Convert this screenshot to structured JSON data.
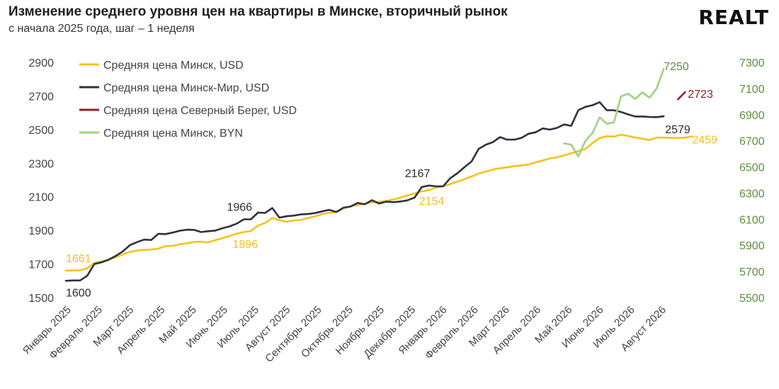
{
  "header": {
    "title": "Изменение среднего уровня цен на квартиры в Минске, вторичный рынок",
    "subtitle": "с начала 2025 года, шаг – 1 неделя",
    "logo": "REALT"
  },
  "colors": {
    "minsk_usd": "#f5c21b",
    "minsk_mir_usd": "#2b3340",
    "severny_bereg_usd": "#8b2323",
    "minsk_byn": "#9fd27f",
    "right_axis": "#5f8f3a"
  },
  "chart_data": {
    "type": "line",
    "title": "Изменение среднего уровня цен на квартиры в Минске, вторичный рынок",
    "subtitle": "с начала 2025 года, шаг – 1 неделя",
    "x_unit": "week",
    "x_start_label": "Январь 2025",
    "x_tick_labels": [
      "Январь 2025",
      "Февраль 2025",
      "Март 2025",
      "Апрель 2025",
      "Май 2025",
      "Июнь 2025",
      "Июль 2025",
      "Август 2025",
      "Сентябрь 2025",
      "Октябрь 2025",
      "Ноябрь 2025",
      "Декабрь 2025",
      "Январь 2026",
      "Февраль 2026",
      "Март 2026",
      "Апрель 2026",
      "Май 2026",
      "Июнь 2026",
      "Июль 2026",
      "Август 2026"
    ],
    "y_left": {
      "ylim": [
        1500,
        2900
      ],
      "ticks": [
        1500,
        1700,
        1900,
        2100,
        2300,
        2500,
        2700,
        2900
      ]
    },
    "y_right": {
      "ylim": [
        5500,
        7300
      ],
      "ticks": [
        5500,
        5700,
        5900,
        6100,
        6300,
        6500,
        6700,
        6900,
        7100,
        7300
      ]
    },
    "grid": false,
    "legend_position": "top-left",
    "series": [
      {
        "name": "Средняя цена Минск, USD",
        "axis": "left",
        "start_week": 0,
        "values": [
          1661,
          1661,
          1662,
          1675,
          1706,
          1715,
          1725,
          1740,
          1757,
          1772,
          1780,
          1784,
          1786,
          1792,
          1806,
          1808,
          1818,
          1823,
          1831,
          1833,
          1828,
          1842,
          1854,
          1866,
          1880,
          1890,
          1896,
          1929,
          1944,
          1974,
          1960,
          1951,
          1959,
          1962,
          1973,
          1983,
          1997,
          2004,
          2008,
          2031,
          2045,
          2050,
          2060,
          2066,
          2070,
          2075,
          2083,
          2095,
          2108,
          2120,
          2132,
          2140,
          2154,
          2163,
          2175,
          2190,
          2205,
          2221,
          2237,
          2250,
          2262,
          2270,
          2275,
          2282,
          2287,
          2292,
          2305,
          2316,
          2328,
          2335,
          2346,
          2359,
          2372,
          2384,
          2420,
          2450,
          2460,
          2458,
          2470,
          2462,
          2452,
          2446,
          2438,
          2452,
          2452,
          2450,
          2450,
          2452,
          2459
        ]
      },
      {
        "name": "Средняя цена Минск-Мир, USD",
        "axis": "left",
        "start_week": 0,
        "values": [
          1600,
          1602,
          1602,
          1630,
          1700,
          1710,
          1725,
          1748,
          1775,
          1812,
          1830,
          1845,
          1843,
          1880,
          1878,
          1887,
          1898,
          1904,
          1903,
          1890,
          1895,
          1899,
          1913,
          1924,
          1940,
          1966,
          1966,
          2006,
          2004,
          2033,
          1976,
          1984,
          1988,
          1995,
          1997,
          2003,
          2013,
          2022,
          2010,
          2035,
          2042,
          2064,
          2055,
          2080,
          2060,
          2071,
          2068,
          2072,
          2079,
          2095,
          2158,
          2167,
          2162,
          2162,
          2210,
          2240,
          2276,
          2310,
          2385,
          2410,
          2425,
          2455,
          2440,
          2440,
          2450,
          2475,
          2484,
          2507,
          2500,
          2510,
          2530,
          2522,
          2615,
          2635,
          2645,
          2663,
          2615,
          2615,
          2605,
          2590,
          2578,
          2578,
          2575,
          2574,
          2579
        ]
      },
      {
        "name": "Средняя цена Северный Берег, USD",
        "axis": "left",
        "start_week": 86,
        "values": [
          2680,
          2723
        ]
      },
      {
        "name": "Средняя цена Минск, BYN",
        "axis": "right",
        "start_week": 70,
        "values": [
          6680,
          6670,
          6580,
          6700,
          6760,
          6880,
          6830,
          6840,
          7040,
          7060,
          7020,
          7070,
          7030,
          7100,
          7250
        ]
      }
    ],
    "annotations": [
      {
        "text": "1661",
        "series": "Средняя цена Минск, USD"
      },
      {
        "text": "1600",
        "series": "Средняя цена Минск-Мир, USD"
      },
      {
        "text": "1966",
        "series": "Средняя цена Минск-Мир, USD"
      },
      {
        "text": "1896",
        "series": "Средняя цена Минск, USD"
      },
      {
        "text": "2167",
        "series": "Средняя цена Минск-Мир, USD"
      },
      {
        "text": "2154",
        "series": "Средняя цена Минск, USD"
      },
      {
        "text": "2579",
        "series": "Средняя цена Минск-Мир, USD"
      },
      {
        "text": "2459",
        "series": "Средняя цена Минск, USD"
      },
      {
        "text": "2723",
        "series": "Средняя цена Северный Берег, USD"
      },
      {
        "text": "7250",
        "series": "Средняя цена Минск, BYN"
      }
    ]
  }
}
